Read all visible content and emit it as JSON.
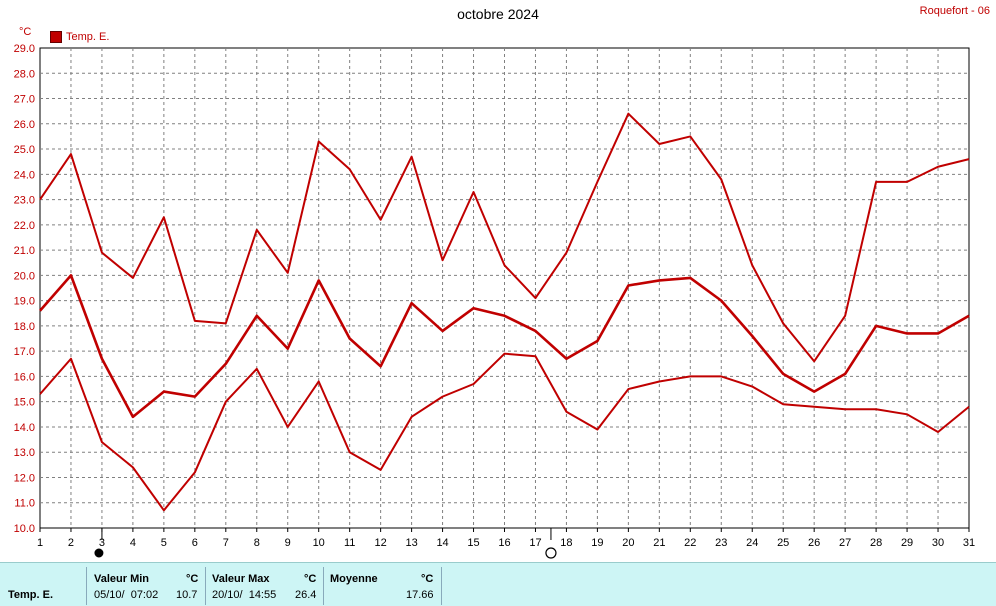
{
  "header": {
    "title": "octobre 2024",
    "station": "Roquefort - 06",
    "unit": "°C",
    "legend_label": "Temp. E."
  },
  "colors": {
    "series": "#c00000",
    "grid": "#808080",
    "footer_bg": "#cdf5f5"
  },
  "chart_data": {
    "type": "line",
    "title": "octobre 2024",
    "xlabel": "",
    "ylabel": "°C",
    "xlim": [
      1,
      31
    ],
    "ylim": [
      10,
      29
    ],
    "x_ticks": [
      1,
      2,
      3,
      4,
      5,
      6,
      7,
      8,
      9,
      10,
      11,
      12,
      13,
      14,
      15,
      16,
      17,
      18,
      19,
      20,
      21,
      22,
      23,
      24,
      25,
      26,
      27,
      28,
      29,
      30,
      31
    ],
    "y_ticks": [
      "10.0",
      "11.0",
      "12.0",
      "13.0",
      "14.0",
      "15.0",
      "16.0",
      "17.0",
      "18.0",
      "19.0",
      "20.0",
      "21.0",
      "22.0",
      "23.0",
      "24.0",
      "25.0",
      "26.0",
      "27.0",
      "28.0",
      "29.0"
    ],
    "grid": true,
    "legend": "top-left",
    "x": [
      1,
      2,
      3,
      4,
      5,
      6,
      7,
      8,
      9,
      10,
      11,
      12,
      13,
      14,
      15,
      16,
      17,
      18,
      19,
      20,
      21,
      22,
      23,
      24,
      25,
      26,
      27,
      28,
      29,
      30,
      31
    ],
    "series": [
      {
        "name": "Temp. E.",
        "role": "max",
        "values": [
          23.0,
          24.8,
          20.9,
          19.9,
          22.3,
          18.2,
          18.1,
          21.8,
          20.1,
          25.3,
          24.2,
          22.2,
          24.7,
          20.6,
          23.3,
          20.4,
          19.1,
          20.9,
          23.7,
          26.4,
          25.2,
          25.5,
          23.8,
          20.4,
          18.1,
          16.6,
          18.4,
          23.7,
          23.7,
          24.3,
          24.6
        ]
      },
      {
        "name": "Temp. E.",
        "role": "mean",
        "values": [
          18.6,
          20.0,
          16.7,
          14.4,
          15.4,
          15.2,
          16.5,
          18.4,
          17.1,
          19.8,
          17.5,
          16.4,
          18.9,
          17.8,
          18.7,
          18.4,
          17.8,
          16.7,
          17.4,
          19.6,
          19.8,
          19.9,
          19.0,
          17.6,
          16.1,
          15.4,
          16.1,
          18.0,
          17.7,
          17.7,
          18.4
        ]
      },
      {
        "name": "Temp. E.",
        "role": "min",
        "values": [
          15.3,
          16.7,
          13.4,
          12.4,
          10.7,
          12.2,
          15.0,
          16.3,
          14.0,
          15.8,
          13.0,
          12.3,
          14.4,
          15.2,
          15.7,
          16.9,
          16.8,
          14.6,
          13.9,
          15.5,
          15.8,
          16.0,
          16.0,
          15.6,
          14.9,
          14.8,
          14.7,
          14.7,
          14.5,
          13.8,
          14.8
        ]
      }
    ],
    "markers": [
      {
        "x": 3,
        "symbol": "filled-circle"
      },
      {
        "x": 17.5,
        "symbol": "open-circle"
      }
    ]
  },
  "footer": {
    "series_label": "Temp. E.",
    "min": {
      "header": "Valeur Min",
      "unit": "°C",
      "datetime": "05/10/  07:02",
      "value": "10.7"
    },
    "max": {
      "header": "Valeur Max",
      "unit": "°C",
      "datetime": "20/10/  14:55",
      "value": "26.4"
    },
    "mean": {
      "header": "Moyenne",
      "unit": "°C",
      "value": "17.66"
    }
  }
}
